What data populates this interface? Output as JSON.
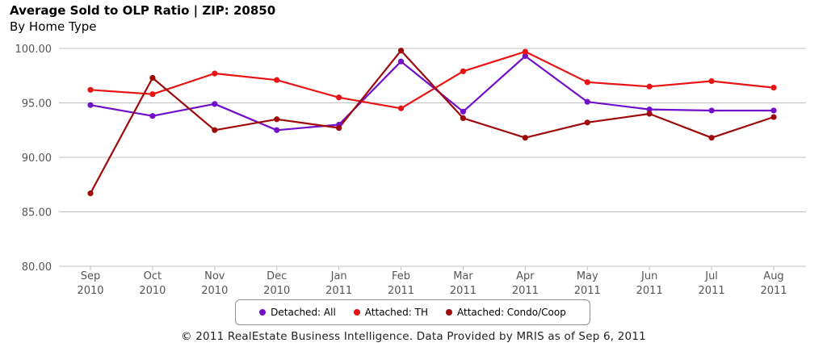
{
  "chart_data": {
    "type": "line",
    "title": "Average Sold to OLP Ratio | ZIP: 20850",
    "subtitle": "By Home Type",
    "categories": [
      [
        "Sep",
        "2010"
      ],
      [
        "Oct",
        "2010"
      ],
      [
        "Nov",
        "2010"
      ],
      [
        "Dec",
        "2010"
      ],
      [
        "Jan",
        "2011"
      ],
      [
        "Feb",
        "2011"
      ],
      [
        "Mar",
        "2011"
      ],
      [
        "Apr",
        "2011"
      ],
      [
        "May",
        "2011"
      ],
      [
        "Jun",
        "2011"
      ],
      [
        "Jul",
        "2011"
      ],
      [
        "Aug",
        "2011"
      ]
    ],
    "ylim": [
      80,
      100
    ],
    "yticks": [
      "80.00",
      "85.00",
      "90.00",
      "95.00",
      "100.00"
    ],
    "grid": true,
    "legend_position": "bottom",
    "series": [
      {
        "name": "Detached: All",
        "color": "#7210c9",
        "values": [
          94.8,
          93.8,
          94.9,
          92.5,
          93.0,
          98.8,
          94.2,
          99.3,
          95.1,
          94.4,
          94.3,
          94.3
        ]
      },
      {
        "name": "Attached: TH",
        "color": "#e81414",
        "values": [
          96.2,
          95.8,
          97.7,
          97.1,
          95.5,
          94.5,
          97.9,
          99.7,
          96.9,
          96.5,
          97.0,
          96.4
        ]
      },
      {
        "name": "Attached: Condo/Coop",
        "color": "#9e0a0a",
        "values": [
          86.7,
          97.3,
          92.5,
          93.5,
          92.7,
          99.8,
          93.6,
          91.8,
          93.2,
          94.0,
          91.8,
          93.7
        ]
      }
    ]
  },
  "footer": "© 2011 RealEstate Business Intelligence. Data Provided by MRIS as of Sep 6, 2011"
}
